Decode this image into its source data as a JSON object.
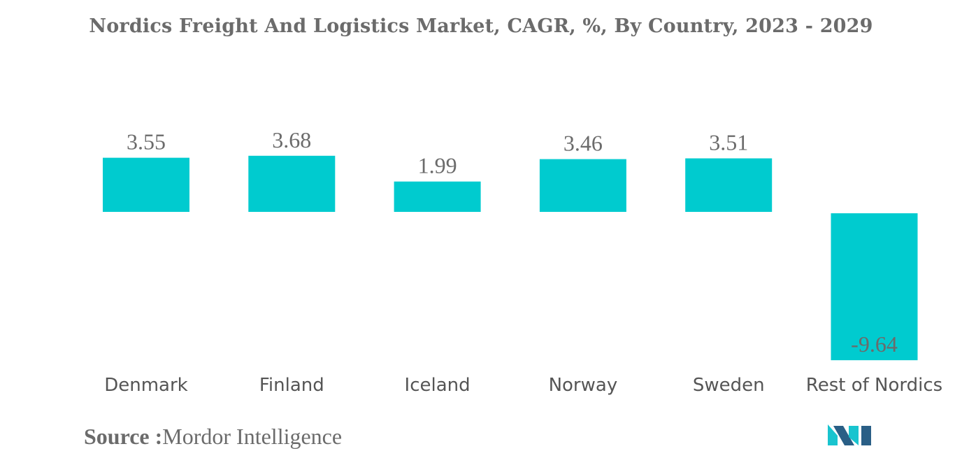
{
  "title": "Nordics Freight And Logistics Market, CAGR, %, By Country, 2023 - 2029",
  "source": {
    "label": "Source :",
    "text": "Mordor Intelligence"
  },
  "colors": {
    "bar": "#00CBCF",
    "text": "#6b6b6b",
    "logo_dark": "#2a5f86",
    "logo_light": "#19c4cf"
  },
  "chart_data": {
    "type": "bar",
    "title": "Nordics Freight And Logistics Market, CAGR, %, By Country, 2023 - 2029",
    "categories": [
      "Denmark",
      "Finland",
      "Iceland",
      "Norway",
      "Sweden",
      "Rest of Nordics"
    ],
    "values": [
      3.55,
      3.68,
      1.99,
      3.46,
      3.51,
      -9.64
    ],
    "value_labels": [
      "3.55",
      "3.68",
      "1.99",
      "3.46",
      "3.51",
      "-9.64"
    ],
    "xlabel": "",
    "ylabel": "",
    "grid": false,
    "legend": "none"
  }
}
